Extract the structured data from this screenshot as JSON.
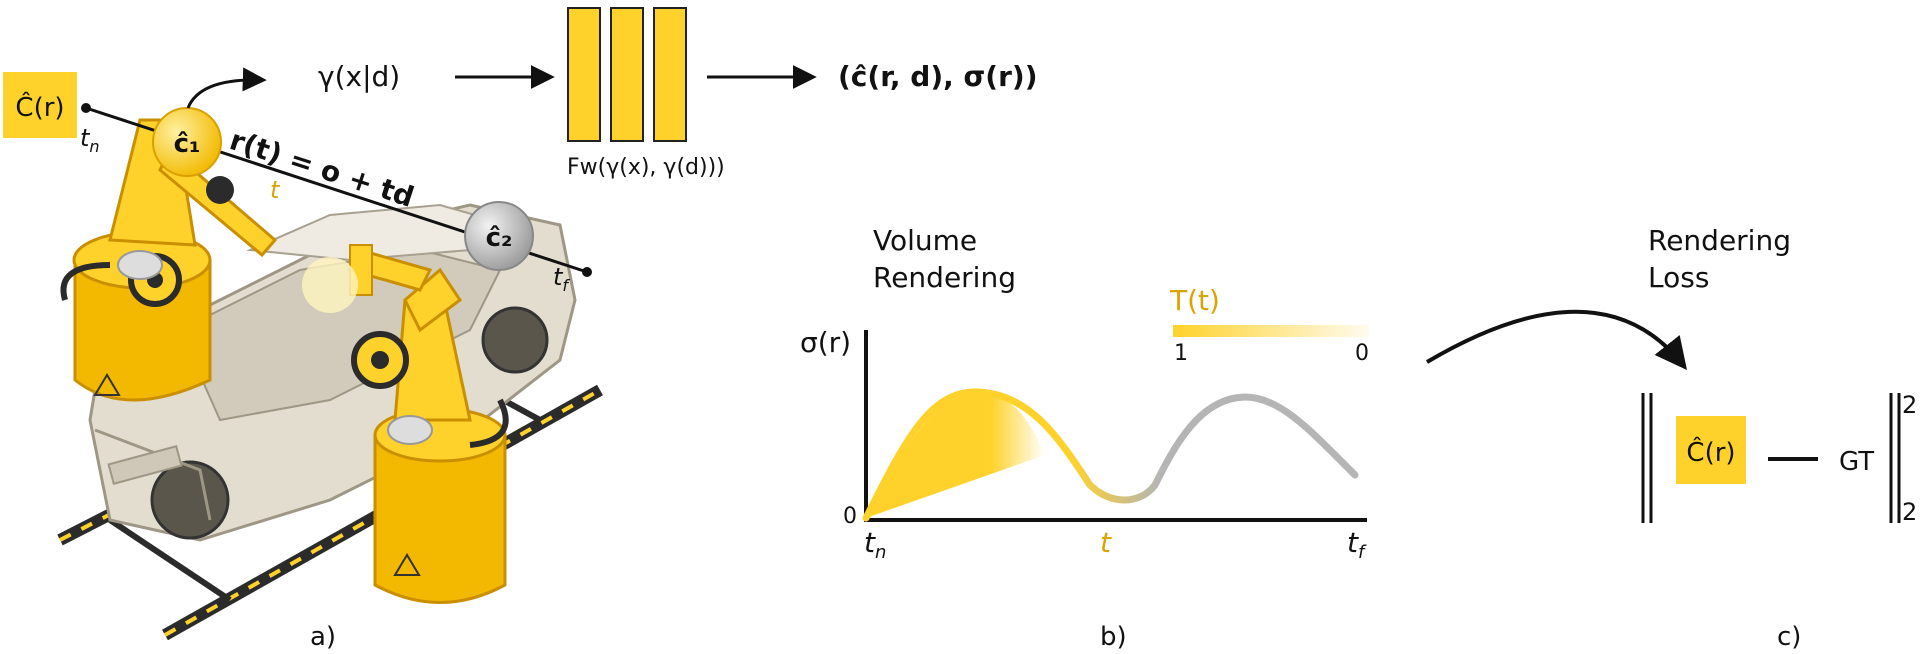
{
  "colors": {
    "accent": "#FFD22B",
    "accent_dark": "#E0A800",
    "orange_text": "#D9A400",
    "ray": "#111111",
    "gray_curve": "#B5B5B5",
    "car_body": "#E3DDCF",
    "rail": "#2B2B2B"
  },
  "panel_a": {
    "c_hat_label": "Ĉ(r)",
    "t_near": "t",
    "t_near_sub": "n",
    "t_far": "t",
    "t_far_sub": "f",
    "t_mid": "t",
    "camera_1": "ĉ₁",
    "camera_2": "ĉ₂",
    "ray_eq": "r(t) = o + td",
    "encoding": "γ(x|d)",
    "network": "Fw(γ(x), γ(d)))",
    "output": "(ĉ(r, d), σ(r))",
    "caption": "a)"
  },
  "panel_b": {
    "title_line1": "Volume",
    "title_line2": "Rendering",
    "y_label": "σ(r)",
    "y_zero": "0",
    "transmittance": "T(t)",
    "bar_left": "1",
    "bar_right": "0",
    "x_tn": "t",
    "x_tn_sub": "n",
    "x_t": "t",
    "x_tf": "t",
    "x_tf_sub": "f",
    "caption": "b)"
  },
  "panel_c": {
    "title_line1": "Rendering",
    "title_line2": "Loss",
    "c_hat": "Ĉ(r)",
    "minus": "—",
    "gt": "GT",
    "sup": "2",
    "sub": "2",
    "caption": "c)"
  }
}
